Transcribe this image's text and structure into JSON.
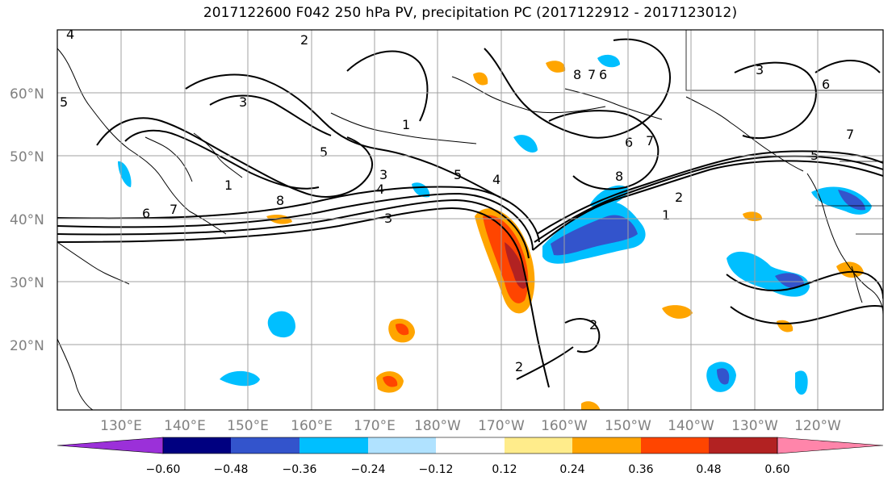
{
  "title": "2017122600 F042 250 hPa PV, precipitation PC (2017122912 - 2017123012)",
  "map": {
    "lat_labels": [
      "60°N",
      "50°N",
      "40°N",
      "30°N",
      "20°N"
    ],
    "lon_labels": [
      "130°E",
      "140°E",
      "150°E",
      "160°E",
      "170°E",
      "180°W",
      "170°W",
      "160°W",
      "150°W",
      "140°W",
      "130°W",
      "120°W"
    ],
    "contour_labels": [
      "4",
      "2",
      "5",
      "3",
      "1",
      "8",
      "7",
      "6",
      "3",
      "4",
      "5",
      "1",
      "6",
      "7",
      "8",
      "3",
      "4",
      "2",
      "1",
      "7",
      "8",
      "6",
      "5",
      "3",
      "7",
      "5",
      "2",
      "6",
      "2"
    ]
  },
  "colorbar": {
    "colors": [
      "#9b30d9",
      "#000080",
      "#3354cc",
      "#00bfff",
      "#b0e2ff",
      "#ffffff",
      "#ffec8b",
      "#ffa500",
      "#ff4500",
      "#b22222",
      "#ff85aa"
    ],
    "tick_labels": [
      "−0.60",
      "−0.48",
      "−0.36",
      "−0.24",
      "−0.12",
      "0.12",
      "0.24",
      "0.36",
      "0.48",
      "0.60"
    ]
  }
}
